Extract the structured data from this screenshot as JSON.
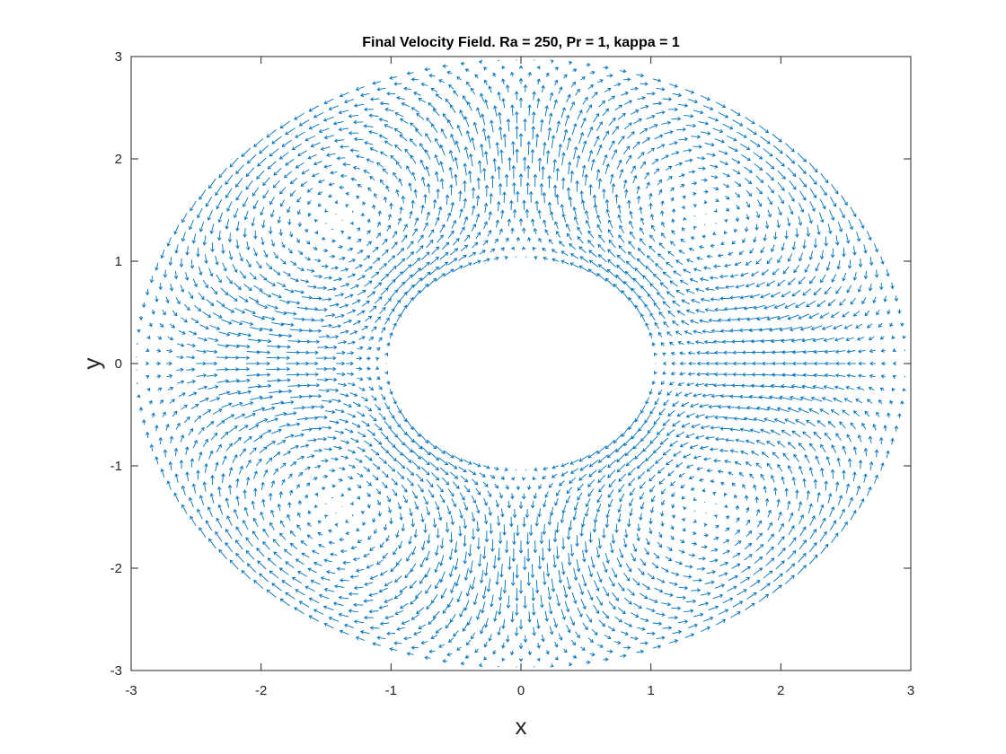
{
  "chart_data": {
    "type": "quiver",
    "title": "Final Velocity Field. Ra = 250, Pr = 1, kappa = 1",
    "xlabel": "x",
    "ylabel": "y",
    "xlim": [
      -3,
      3
    ],
    "ylim": [
      -3,
      3
    ],
    "xticks": [
      "-3",
      "-2",
      "-1",
      "0",
      "1",
      "2",
      "3"
    ],
    "yticks": [
      "-3",
      "-2",
      "-1",
      "0",
      "1",
      "2",
      "3"
    ],
    "grid": false,
    "series_color": "#0072BD",
    "domain": {
      "shape": "annulus",
      "inner_radius": 1,
      "outer_radius": 3,
      "x_half_width": 3,
      "y_half_height": 3
    },
    "flow": {
      "description_cells": 4,
      "vortex_centers": [
        [
          -1.35,
          1.45
        ],
        [
          1.45,
          1.45
        ],
        [
          -1.35,
          -1.45
        ],
        [
          1.45,
          -1.45
        ]
      ]
    }
  }
}
